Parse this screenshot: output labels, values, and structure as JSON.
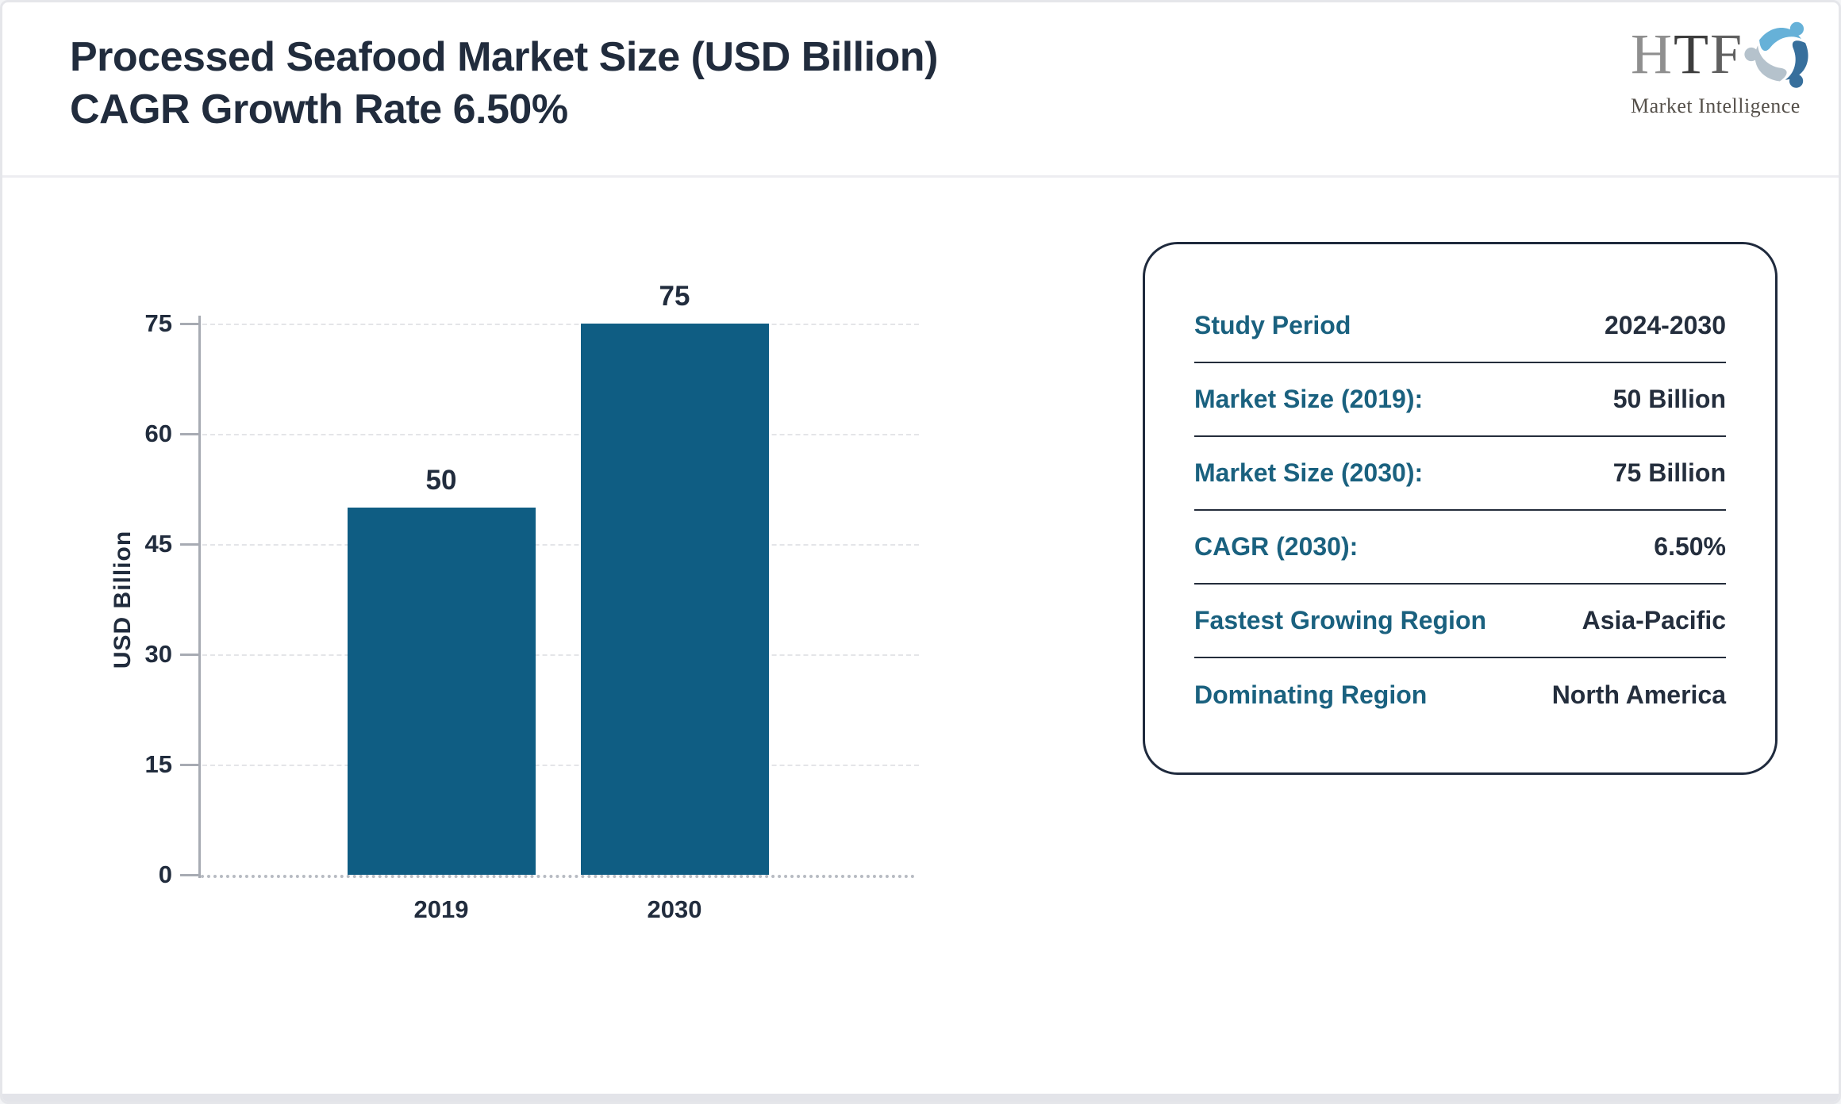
{
  "header": {
    "title_line1": "Processed Seafood Market Size (USD Billion)",
    "title_line2": "CAGR Growth Rate 6.50%"
  },
  "logo": {
    "h": "H",
    "t": "T",
    "f": "F",
    "subtitle": "Market Intelligence",
    "icon": "htf-swirl-icon"
  },
  "chart_data": {
    "type": "bar",
    "title": "Processed Seafood Market Size (USD Billion), CAGR Growth Rate 6.50%",
    "categories": [
      "2019",
      "2030"
    ],
    "values": [
      50,
      75
    ],
    "data_labels": [
      "50",
      "75"
    ],
    "xlabel": "",
    "ylabel": "USD Billion",
    "yticks": [
      0,
      15,
      30,
      45,
      60,
      75
    ],
    "ylim": [
      0,
      75
    ],
    "grid": true,
    "legend": "none"
  },
  "info_panel": {
    "rows": [
      {
        "label": "Study Period",
        "value": "2024-2030"
      },
      {
        "label": "Market Size (2019):",
        "value": "50 Billion"
      },
      {
        "label": "Market Size (2030):",
        "value": "75 Billion"
      },
      {
        "label": "CAGR (2030):",
        "value": "6.50%"
      },
      {
        "label": "Fastest Growing Region",
        "value": "Asia-Pacific"
      },
      {
        "label": "Dominating Region",
        "value": "North America"
      }
    ]
  },
  "colors": {
    "bar": "#0f5d83",
    "title_text": "#212c3d",
    "label_teal": "#1a617f",
    "value_navy": "#242e3d",
    "axis_gray": "#a7abb3",
    "logo_h": "#8f8f8f",
    "logo_t": "#3d3d3d",
    "logo_f": "#606060",
    "icon_light_blue": "#66b1d8",
    "icon_pale_gray": "#b5c2cc",
    "icon_steel_blue": "#376f9c"
  }
}
